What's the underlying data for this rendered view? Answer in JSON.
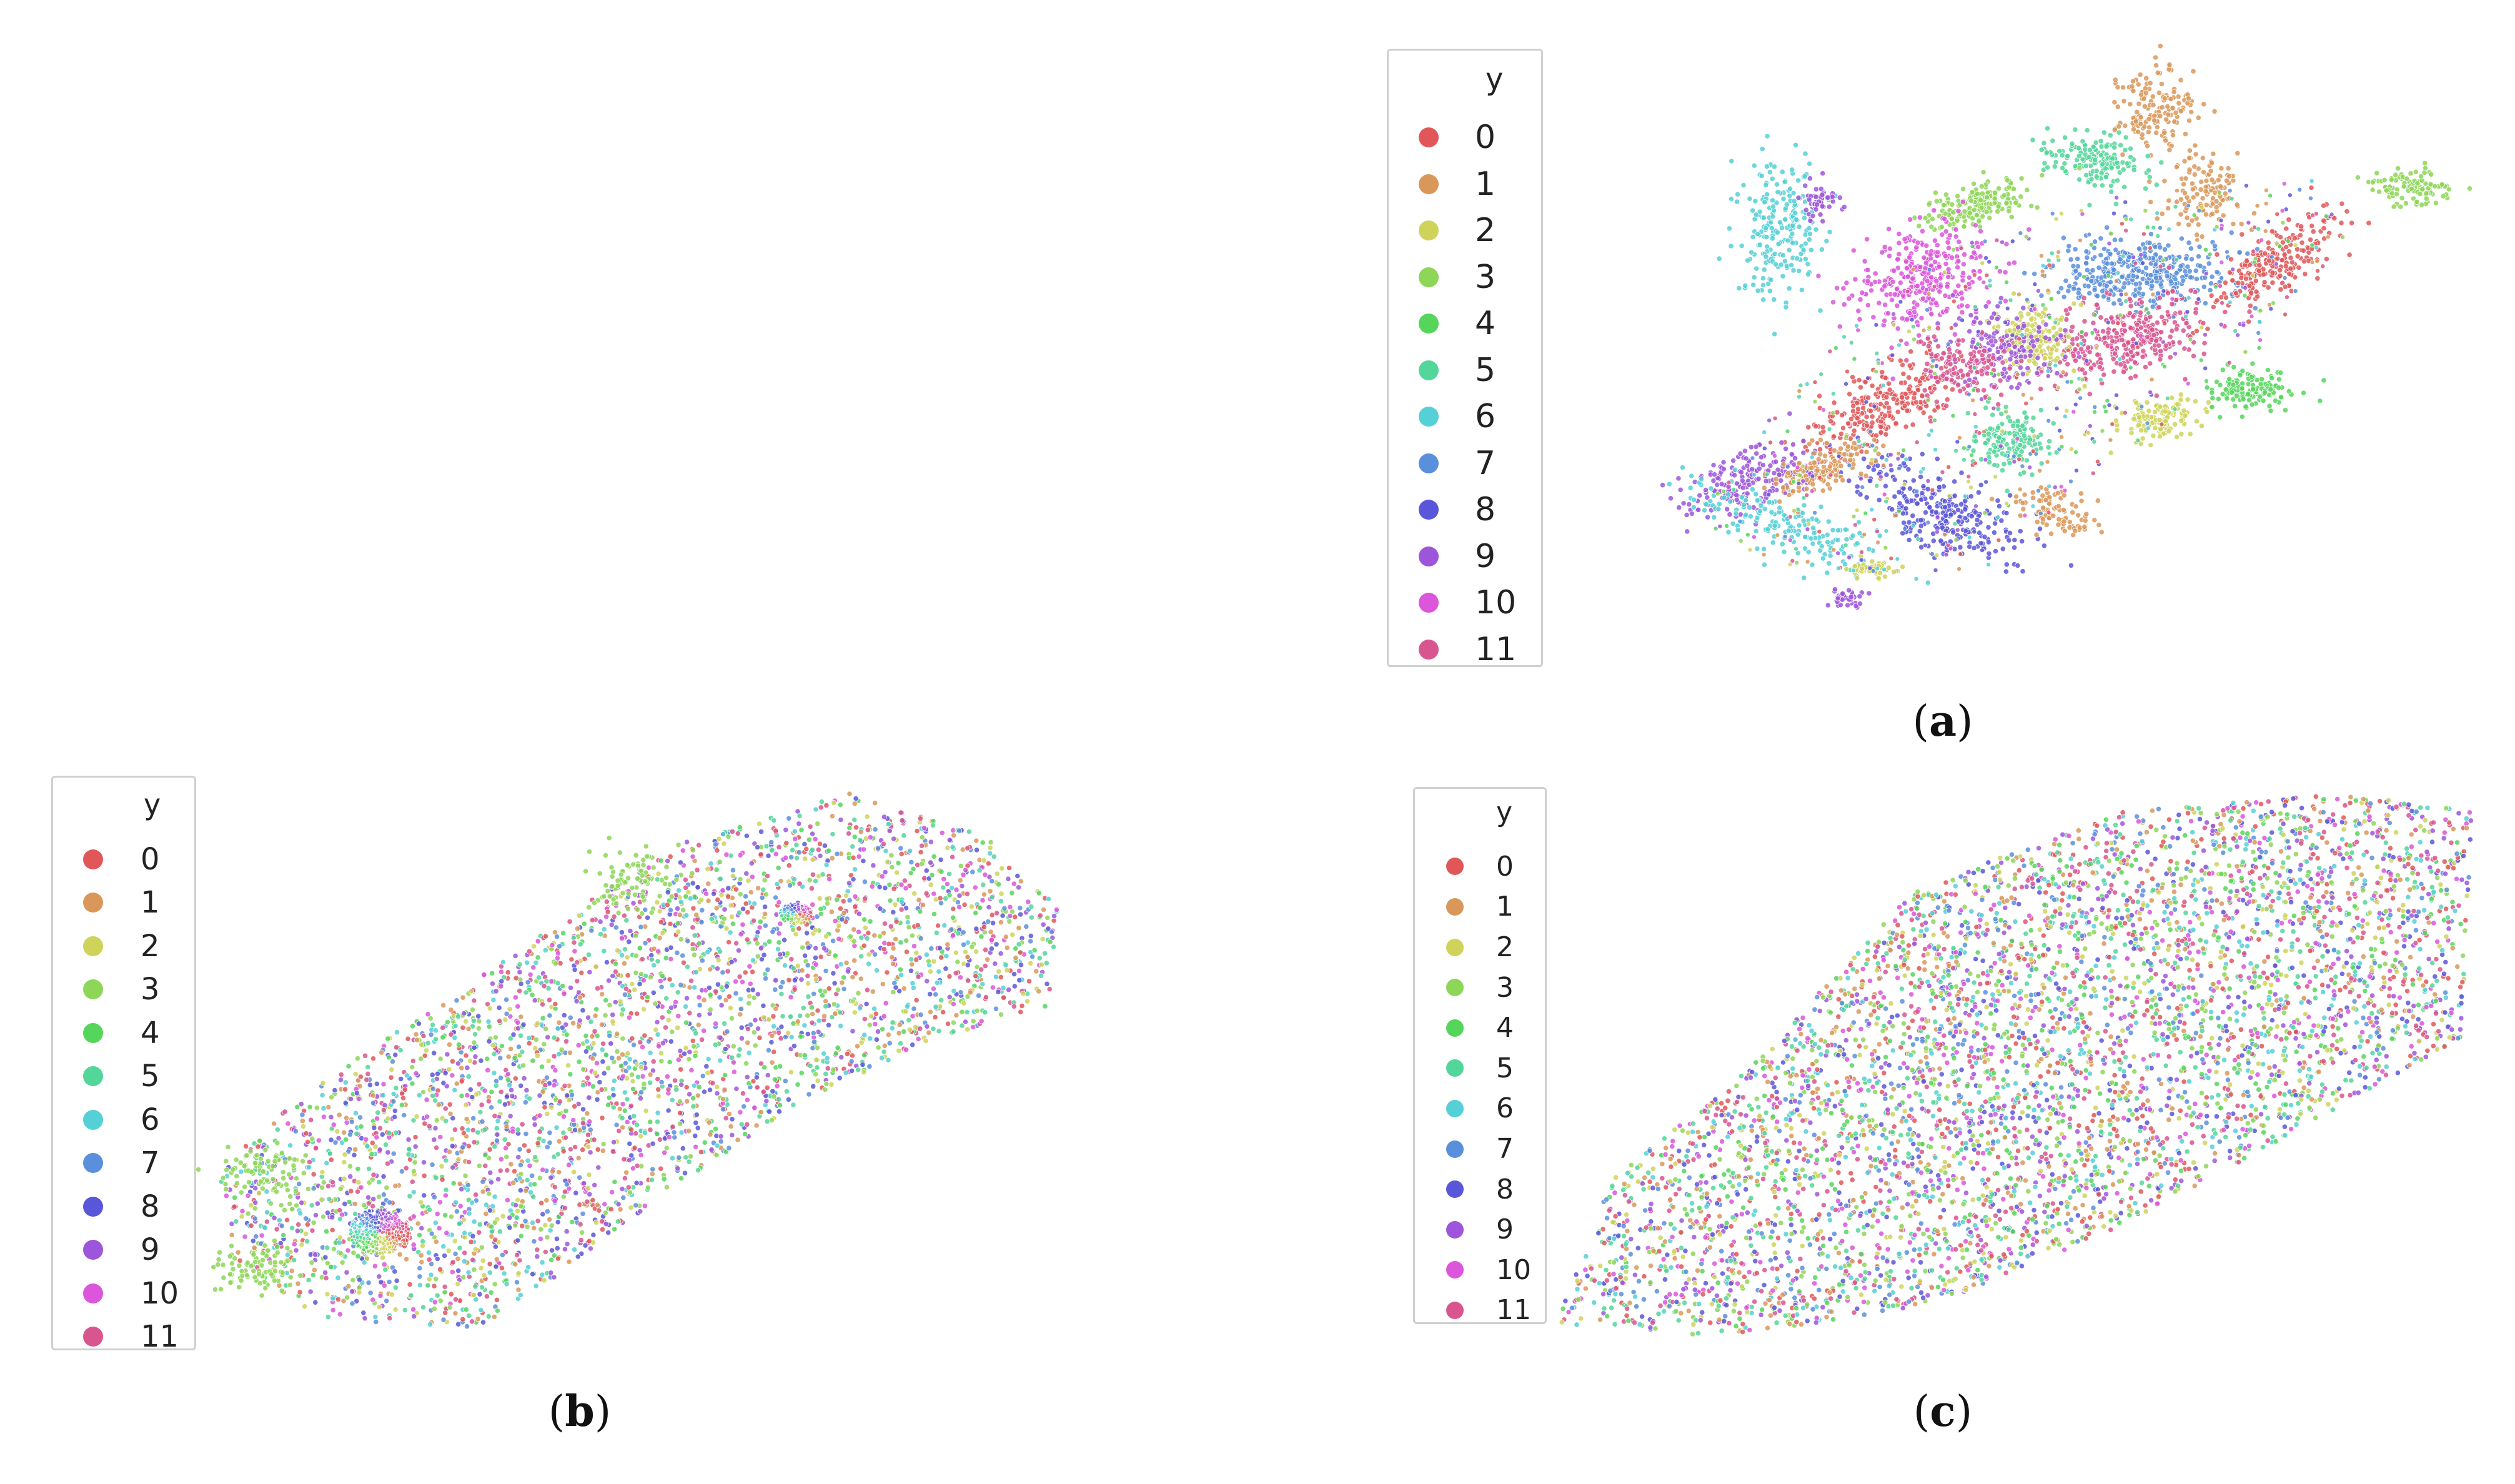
{
  "chart_data": [
    {
      "type": "scatter",
      "caption_letter": "a",
      "legend_title": "y",
      "legend_position": "upper-left",
      "axes_visible": false,
      "classes": [
        "0",
        "1",
        "2",
        "3",
        "4",
        "5",
        "6",
        "7",
        "8",
        "9",
        "10",
        "11"
      ],
      "class_colors": [
        "#e15759",
        "#d9985a",
        "#cfd35a",
        "#8ed657",
        "#55d65a",
        "#52d69a",
        "#55d0d6",
        "#5a8fdc",
        "#5a56d9",
        "#9d56db",
        "#db56db",
        "#d9558f"
      ],
      "structure": "well-separated clusters per class",
      "point_count_approx": 6000
    },
    {
      "type": "scatter",
      "caption_letter": "b",
      "legend_title": "y",
      "legend_position": "upper-left",
      "axes_visible": false,
      "classes": [
        "0",
        "1",
        "2",
        "3",
        "4",
        "5",
        "6",
        "7",
        "8",
        "9",
        "10",
        "11"
      ],
      "class_colors": [
        "#e15759",
        "#d9985a",
        "#cfd35a",
        "#8ed657",
        "#55d65a",
        "#52d69a",
        "#55d0d6",
        "#5a8fdc",
        "#5a56d9",
        "#9d56db",
        "#db56db",
        "#d9558f"
      ],
      "structure": "classes heavily mixed; two small dense rings",
      "point_count_approx": 6000
    },
    {
      "type": "scatter",
      "caption_letter": "c",
      "legend_title": "y",
      "legend_position": "upper-left",
      "axes_visible": false,
      "classes": [
        "0",
        "1",
        "2",
        "3",
        "4",
        "5",
        "6",
        "7",
        "8",
        "9",
        "10",
        "11"
      ],
      "class_colors": [
        "#e15759",
        "#d9985a",
        "#cfd35a",
        "#8ed657",
        "#55d65a",
        "#52d69a",
        "#55d0d6",
        "#5a8fdc",
        "#5a56d9",
        "#9d56db",
        "#db56db",
        "#d9558f"
      ],
      "structure": "classes fully mixed in one diagonal band",
      "point_count_approx": 9000
    }
  ]
}
